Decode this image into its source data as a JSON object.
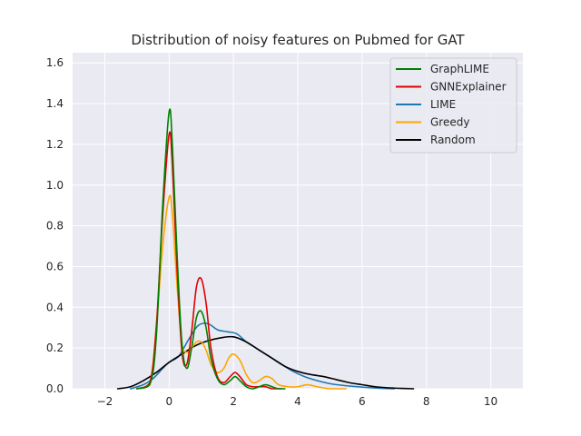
{
  "chart_data": {
    "type": "line",
    "title": "Distribution of noisy features on Pubmed for GAT",
    "xlabel": "",
    "ylabel": "",
    "xlim": [
      -3.0,
      11.0
    ],
    "ylim": [
      0.0,
      1.65
    ],
    "xticks": [
      -2,
      0,
      2,
      4,
      6,
      8,
      10
    ],
    "xtick_labels": [
      "−2",
      "0",
      "2",
      "4",
      "6",
      "8",
      "10"
    ],
    "yticks": [
      0.0,
      0.2,
      0.4,
      0.6,
      0.8,
      1.0,
      1.2,
      1.4,
      1.6
    ],
    "ytick_labels": [
      "0.0",
      "0.2",
      "0.4",
      "0.6",
      "0.8",
      "1.0",
      "1.2",
      "1.4",
      "1.6"
    ],
    "grid": true,
    "legend_position": "top-right",
    "series": [
      {
        "name": "GraphLIME",
        "color": "#008000",
        "x": [
          -1.0,
          -0.6,
          -0.4,
          -0.2,
          0.0,
          0.1,
          0.25,
          0.4,
          0.55,
          0.7,
          0.85,
          1.0,
          1.15,
          1.3,
          1.5,
          1.7,
          1.9,
          2.05,
          2.2,
          2.4,
          2.6,
          2.8,
          3.0,
          3.2,
          3.4,
          3.6
        ],
        "y": [
          0.0,
          0.02,
          0.25,
          0.9,
          1.36,
          1.2,
          0.65,
          0.22,
          0.1,
          0.2,
          0.35,
          0.38,
          0.3,
          0.15,
          0.05,
          0.02,
          0.04,
          0.06,
          0.04,
          0.01,
          0.0,
          0.01,
          0.02,
          0.01,
          0.0,
          0.0
        ]
      },
      {
        "name": "GNNExplainer",
        "color": "#e00000",
        "x": [
          -1.0,
          -0.6,
          -0.4,
          -0.2,
          0.0,
          0.1,
          0.25,
          0.4,
          0.55,
          0.7,
          0.85,
          1.0,
          1.15,
          1.3,
          1.5,
          1.7,
          1.9,
          2.05,
          2.2,
          2.4,
          2.6,
          2.8,
          3.0,
          3.2,
          3.5
        ],
        "y": [
          0.0,
          0.03,
          0.3,
          0.85,
          1.25,
          1.1,
          0.58,
          0.18,
          0.12,
          0.28,
          0.5,
          0.54,
          0.42,
          0.2,
          0.06,
          0.03,
          0.06,
          0.08,
          0.06,
          0.02,
          0.01,
          0.01,
          0.01,
          0.0,
          0.0
        ]
      },
      {
        "name": "LIME",
        "color": "#1f77b4",
        "x": [
          -1.2,
          -0.8,
          -0.5,
          -0.2,
          0.0,
          0.3,
          0.6,
          0.9,
          1.2,
          1.5,
          1.8,
          2.1,
          2.4,
          2.7,
          3.0,
          3.4,
          3.8,
          4.2,
          4.6,
          5.0,
          5.5,
          6.0,
          6.5,
          7.0
        ],
        "y": [
          0.0,
          0.02,
          0.05,
          0.1,
          0.13,
          0.16,
          0.24,
          0.31,
          0.32,
          0.29,
          0.28,
          0.27,
          0.23,
          0.2,
          0.17,
          0.13,
          0.09,
          0.06,
          0.04,
          0.025,
          0.015,
          0.008,
          0.003,
          0.0
        ]
      },
      {
        "name": "Greedy",
        "color": "#ffa500",
        "x": [
          -1.0,
          -0.6,
          -0.4,
          -0.2,
          0.0,
          0.1,
          0.25,
          0.4,
          0.55,
          0.7,
          0.85,
          1.0,
          1.15,
          1.3,
          1.5,
          1.7,
          1.85,
          2.0,
          2.2,
          2.4,
          2.6,
          2.8,
          3.0,
          3.2,
          3.4,
          3.7,
          4.0,
          4.3,
          4.6,
          5.0,
          5.5
        ],
        "y": [
          0.0,
          0.03,
          0.3,
          0.7,
          0.94,
          0.86,
          0.5,
          0.22,
          0.18,
          0.2,
          0.23,
          0.23,
          0.19,
          0.12,
          0.08,
          0.1,
          0.15,
          0.17,
          0.14,
          0.07,
          0.03,
          0.04,
          0.06,
          0.05,
          0.02,
          0.01,
          0.01,
          0.02,
          0.01,
          0.0,
          0.0
        ]
      },
      {
        "name": "Random",
        "color": "#000000",
        "x": [
          -1.6,
          -1.2,
          -0.8,
          -0.4,
          0.0,
          0.4,
          0.8,
          1.2,
          1.6,
          2.0,
          2.4,
          2.8,
          3.2,
          3.6,
          4.0,
          4.4,
          4.8,
          5.2,
          5.6,
          6.0,
          6.4,
          6.8,
          7.2,
          7.6
        ],
        "y": [
          0.0,
          0.01,
          0.04,
          0.08,
          0.13,
          0.17,
          0.21,
          0.235,
          0.25,
          0.255,
          0.23,
          0.19,
          0.15,
          0.11,
          0.085,
          0.07,
          0.06,
          0.045,
          0.03,
          0.02,
          0.01,
          0.005,
          0.002,
          0.0
        ]
      }
    ]
  }
}
